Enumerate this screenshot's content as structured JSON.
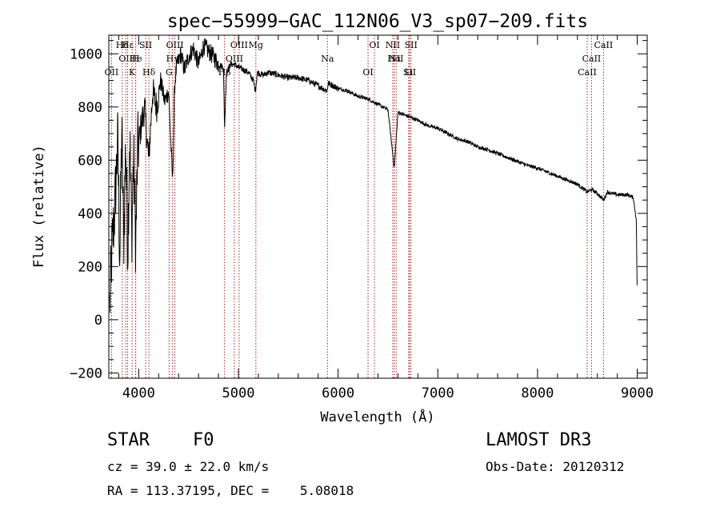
{
  "chart_data": {
    "type": "line",
    "title": "spec−55999−GAC_112N06_V3_sp07−209.fits",
    "xlabel": "Wavelength (Å)",
    "ylabel": "Flux (relative)",
    "xlim": [
      3700,
      9100
    ],
    "ylim": [
      -220,
      1070
    ],
    "x_ticks": [
      4000,
      5000,
      6000,
      7000,
      8000,
      9000
    ],
    "x_tick_labels": [
      "4000",
      "5000",
      "6000",
      "7000",
      "8000",
      "9000"
    ],
    "y_ticks": [
      -200,
      0,
      200,
      400,
      600,
      800,
      1000
    ],
    "y_tick_labels": [
      "−200",
      "0",
      "200",
      "400",
      "600",
      "800",
      "1000"
    ],
    "grid": false,
    "line_color": "#000000",
    "marker_color": "#b22222",
    "series": [
      {
        "name": "flux",
        "x": [
          3710,
          3730,
          3760,
          3790,
          3810,
          3830,
          3850,
          3870,
          3890,
          3910,
          3930,
          3950,
          3970,
          3990,
          4020,
          4060,
          4100,
          4140,
          4180,
          4220,
          4260,
          4300,
          4330,
          4340,
          4360,
          4380,
          4420,
          4460,
          4500,
          4550,
          4600,
          4650,
          4700,
          4750,
          4800,
          4850,
          4861,
          4880,
          4920,
          4960,
          5000,
          5050,
          5100,
          5150,
          5170,
          5190,
          5250,
          5300,
          5400,
          5500,
          5600,
          5700,
          5800,
          5890,
          5900,
          5950,
          6000,
          6100,
          6200,
          6300,
          6400,
          6500,
          6563,
          6600,
          6700,
          6800,
          6900,
          7000,
          7100,
          7200,
          7300,
          7400,
          7500,
          7600,
          7700,
          7800,
          7900,
          8000,
          8100,
          8200,
          8300,
          8400,
          8498,
          8542,
          8600,
          8662,
          8700,
          8800,
          8900,
          8960,
          8990,
          9000
        ],
        "y": [
          50,
          250,
          420,
          680,
          230,
          720,
          300,
          680,
          260,
          700,
          320,
          620,
          280,
          640,
          720,
          800,
          600,
          860,
          800,
          900,
          820,
          860,
          600,
          520,
          880,
          950,
          1000,
          940,
          990,
          1020,
          960,
          1030,
          1010,
          990,
          960,
          950,
          720,
          930,
          960,
          960,
          950,
          940,
          930,
          900,
          860,
          930,
          920,
          930,
          920,
          910,
          910,
          900,
          880,
          860,
          890,
          880,
          870,
          860,
          840,
          830,
          810,
          790,
          570,
          780,
          765,
          750,
          730,
          720,
          700,
          680,
          670,
          650,
          640,
          625,
          610,
          595,
          580,
          570,
          555,
          540,
          525,
          510,
          480,
          490,
          475,
          450,
          480,
          470,
          470,
          460,
          380,
          100
        ]
      }
    ],
    "markers": [
      {
        "label": "Hδ",
        "wl": 3835
      },
      {
        "label": "OII",
        "wl": 3870
      },
      {
        "label": "OII",
        "wl": 3727
      },
      {
        "label": "Hε",
        "wl": 3889
      },
      {
        "label": "He",
        "wl": 3970
      },
      {
        "label": "K",
        "wl": 3934
      },
      {
        "label": "SII",
        "wl": 4070
      },
      {
        "label": "H",
        "wl": 3969
      },
      {
        "label": "Hδ",
        "wl": 4102
      },
      {
        "label": "OIII",
        "wl": 4363
      },
      {
        "label": "Hγ",
        "wl": 4340
      },
      {
        "label": "G",
        "wl": 4305
      },
      {
        "label": "OIII",
        "wl": 5007
      },
      {
        "label": "OIII",
        "wl": 4959
      },
      {
        "label": "Hβ",
        "wl": 4861
      },
      {
        "label": "Mg",
        "wl": 5175
      },
      {
        "label": "Na",
        "wl": 5893
      },
      {
        "label": "OI",
        "wl": 6300
      },
      {
        "label": "OI",
        "wl": 6364
      },
      {
        "label": "Hα",
        "wl": 6563
      },
      {
        "label": "SII",
        "wl": 6717
      },
      {
        "label": "NII",
        "wl": 6548
      },
      {
        "label": "NII",
        "wl": 6583
      },
      {
        "label": "Li",
        "wl": 6708
      },
      {
        "label": "SII",
        "wl": 6731
      },
      {
        "label": "CaII",
        "wl": 8542
      },
      {
        "label": "CaII",
        "wl": 8498
      },
      {
        "label": "CaII",
        "wl": 8662
      }
    ]
  },
  "info": {
    "object_class": "STAR",
    "subclass": "F0",
    "survey": "LAMOST DR3",
    "cz": "cz = 39.0 ± 22.0 km/s",
    "obs_date": "Obs-Date: 20120312",
    "radec": "RA = 113.37195, DEC =    5.08018"
  }
}
